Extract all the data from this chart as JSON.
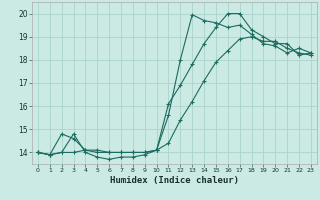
{
  "title": "",
  "xlabel": "Humidex (Indice chaleur)",
  "ylabel": "",
  "background_color": "#cceae4",
  "grid_color": "#aad4cc",
  "line_color": "#1a6b60",
  "xlim": [
    -0.5,
    23.5
  ],
  "ylim": [
    13.5,
    20.5
  ],
  "xticks": [
    0,
    1,
    2,
    3,
    4,
    5,
    6,
    7,
    8,
    9,
    10,
    11,
    12,
    13,
    14,
    15,
    16,
    17,
    18,
    19,
    20,
    21,
    22,
    23
  ],
  "yticks": [
    14,
    15,
    16,
    17,
    18,
    19,
    20
  ],
  "line1_x": [
    0,
    1,
    2,
    3,
    4,
    5,
    6,
    7,
    8,
    9,
    10,
    11,
    12,
    13,
    14,
    15,
    16,
    17,
    18,
    19,
    20,
    21,
    22,
    23
  ],
  "line1_y": [
    14.0,
    13.9,
    14.8,
    14.6,
    14.1,
    14.1,
    14.0,
    14.0,
    14.0,
    14.0,
    14.1,
    16.1,
    16.9,
    17.8,
    18.7,
    19.4,
    20.0,
    20.0,
    19.3,
    19.0,
    18.7,
    18.7,
    18.2,
    18.3
  ],
  "line2_x": [
    0,
    1,
    2,
    3,
    4,
    5,
    6,
    7,
    8,
    9,
    10,
    11,
    12,
    13,
    14,
    15,
    16,
    17,
    18,
    19,
    20,
    21,
    22,
    23
  ],
  "line2_y": [
    14.0,
    13.9,
    14.0,
    14.8,
    14.0,
    13.8,
    13.7,
    13.8,
    13.8,
    13.9,
    14.1,
    15.6,
    18.0,
    19.95,
    19.7,
    19.6,
    19.4,
    19.5,
    19.1,
    18.7,
    18.6,
    18.3,
    18.5,
    18.3
  ],
  "line3_x": [
    0,
    1,
    2,
    3,
    4,
    5,
    6,
    7,
    8,
    9,
    10,
    11,
    12,
    13,
    14,
    15,
    16,
    17,
    18,
    19,
    20,
    21,
    22,
    23
  ],
  "line3_y": [
    14.0,
    13.9,
    14.0,
    14.0,
    14.1,
    14.0,
    14.0,
    14.0,
    14.0,
    14.0,
    14.1,
    14.4,
    15.4,
    16.2,
    17.1,
    17.9,
    18.4,
    18.9,
    19.0,
    18.8,
    18.8,
    18.5,
    18.3,
    18.2
  ]
}
